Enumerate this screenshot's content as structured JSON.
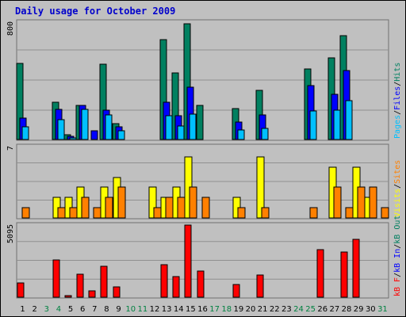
{
  "title": "Daily usage for October 2009",
  "chart_data": [
    {
      "type": "bar",
      "title": "Daily usage for October 2009",
      "ymax_label": "800",
      "ylim": [
        0,
        800
      ],
      "legend": [
        "Pages",
        "Files",
        "Hits"
      ],
      "legend_colors": {
        "Pages": "#00c0ff",
        "Files": "#0000ff",
        "Hits": "#008060"
      },
      "separators": [
        "/",
        "/"
      ],
      "categories": [
        "1",
        "2",
        "3",
        "4",
        "5",
        "6",
        "7",
        "8",
        "9",
        "10",
        "11",
        "12",
        "13",
        "14",
        "15",
        "16",
        "17",
        "18",
        "19",
        "20",
        "21",
        "22",
        "23",
        "24",
        "25",
        "26",
        "27",
        "28",
        "29",
        "30",
        "31"
      ],
      "series": [
        {
          "name": "Hits",
          "values": [
            520,
            0,
            0,
            255,
            35,
            230,
            0,
            515,
            110,
            0,
            0,
            0,
            680,
            455,
            790,
            230,
            0,
            0,
            210,
            0,
            335,
            0,
            0,
            0,
            480,
            0,
            555,
            710,
            0,
            0,
            0
          ]
        },
        {
          "name": "Files",
          "values": [
            145,
            0,
            0,
            205,
            20,
            230,
            60,
            200,
            85,
            0,
            0,
            0,
            255,
            160,
            355,
            0,
            0,
            0,
            120,
            0,
            170,
            0,
            0,
            0,
            365,
            0,
            310,
            470,
            0,
            0,
            0
          ]
        },
        {
          "name": "Pages",
          "values": [
            85,
            0,
            0,
            135,
            10,
            205,
            0,
            170,
            60,
            0,
            0,
            0,
            160,
            90,
            175,
            0,
            0,
            0,
            65,
            0,
            75,
            0,
            0,
            0,
            195,
            0,
            200,
            265,
            0,
            0,
            0
          ]
        }
      ]
    },
    {
      "type": "bar",
      "ymax_label": "7",
      "ylim": [
        0,
        7
      ],
      "legend": [
        "Visits",
        "Sites"
      ],
      "legend_colors": {
        "Visits": "#ffff00",
        "Sites": "#ff8000"
      },
      "separators": [
        "/"
      ],
      "series": [
        {
          "name": "Visits",
          "values": [
            0,
            0,
            0,
            2,
            2,
            3,
            0,
            3,
            4,
            0,
            0,
            3,
            2,
            3,
            6,
            0,
            0,
            0,
            2,
            0,
            6,
            0,
            0,
            0,
            0,
            0,
            5,
            0,
            5,
            2,
            0
          ]
        },
        {
          "name": "Sites",
          "values": [
            1,
            0,
            0,
            1,
            1,
            2,
            1,
            2,
            3,
            0,
            0,
            1,
            2,
            2,
            3,
            2,
            0,
            0,
            1,
            0,
            1,
            0,
            0,
            0,
            1,
            0,
            3,
            1,
            3,
            3,
            1
          ]
        }
      ]
    },
    {
      "type": "bar",
      "ymax_label": "5095",
      "ylim": [
        0,
        5095
      ],
      "legend": [
        "kB F",
        "kB In",
        "kB Out"
      ],
      "legend_colors": {
        "kB F": "#ff0000",
        "kB In": "#0000ff",
        "kB Out": "#008060"
      },
      "separators": [
        "/",
        "/"
      ],
      "series": [
        {
          "name": "kB F",
          "values": [
            1030,
            0,
            0,
            2650,
            110,
            1600,
            450,
            2180,
            700,
            0,
            0,
            0,
            2270,
            1430,
            5095,
            1860,
            0,
            0,
            880,
            0,
            1570,
            0,
            0,
            0,
            0,
            3340,
            0,
            3200,
            4090,
            0,
            0
          ]
        }
      ],
      "day_label_colors": {
        "weekday": "#000000",
        "weekend": "#008040"
      }
    }
  ]
}
